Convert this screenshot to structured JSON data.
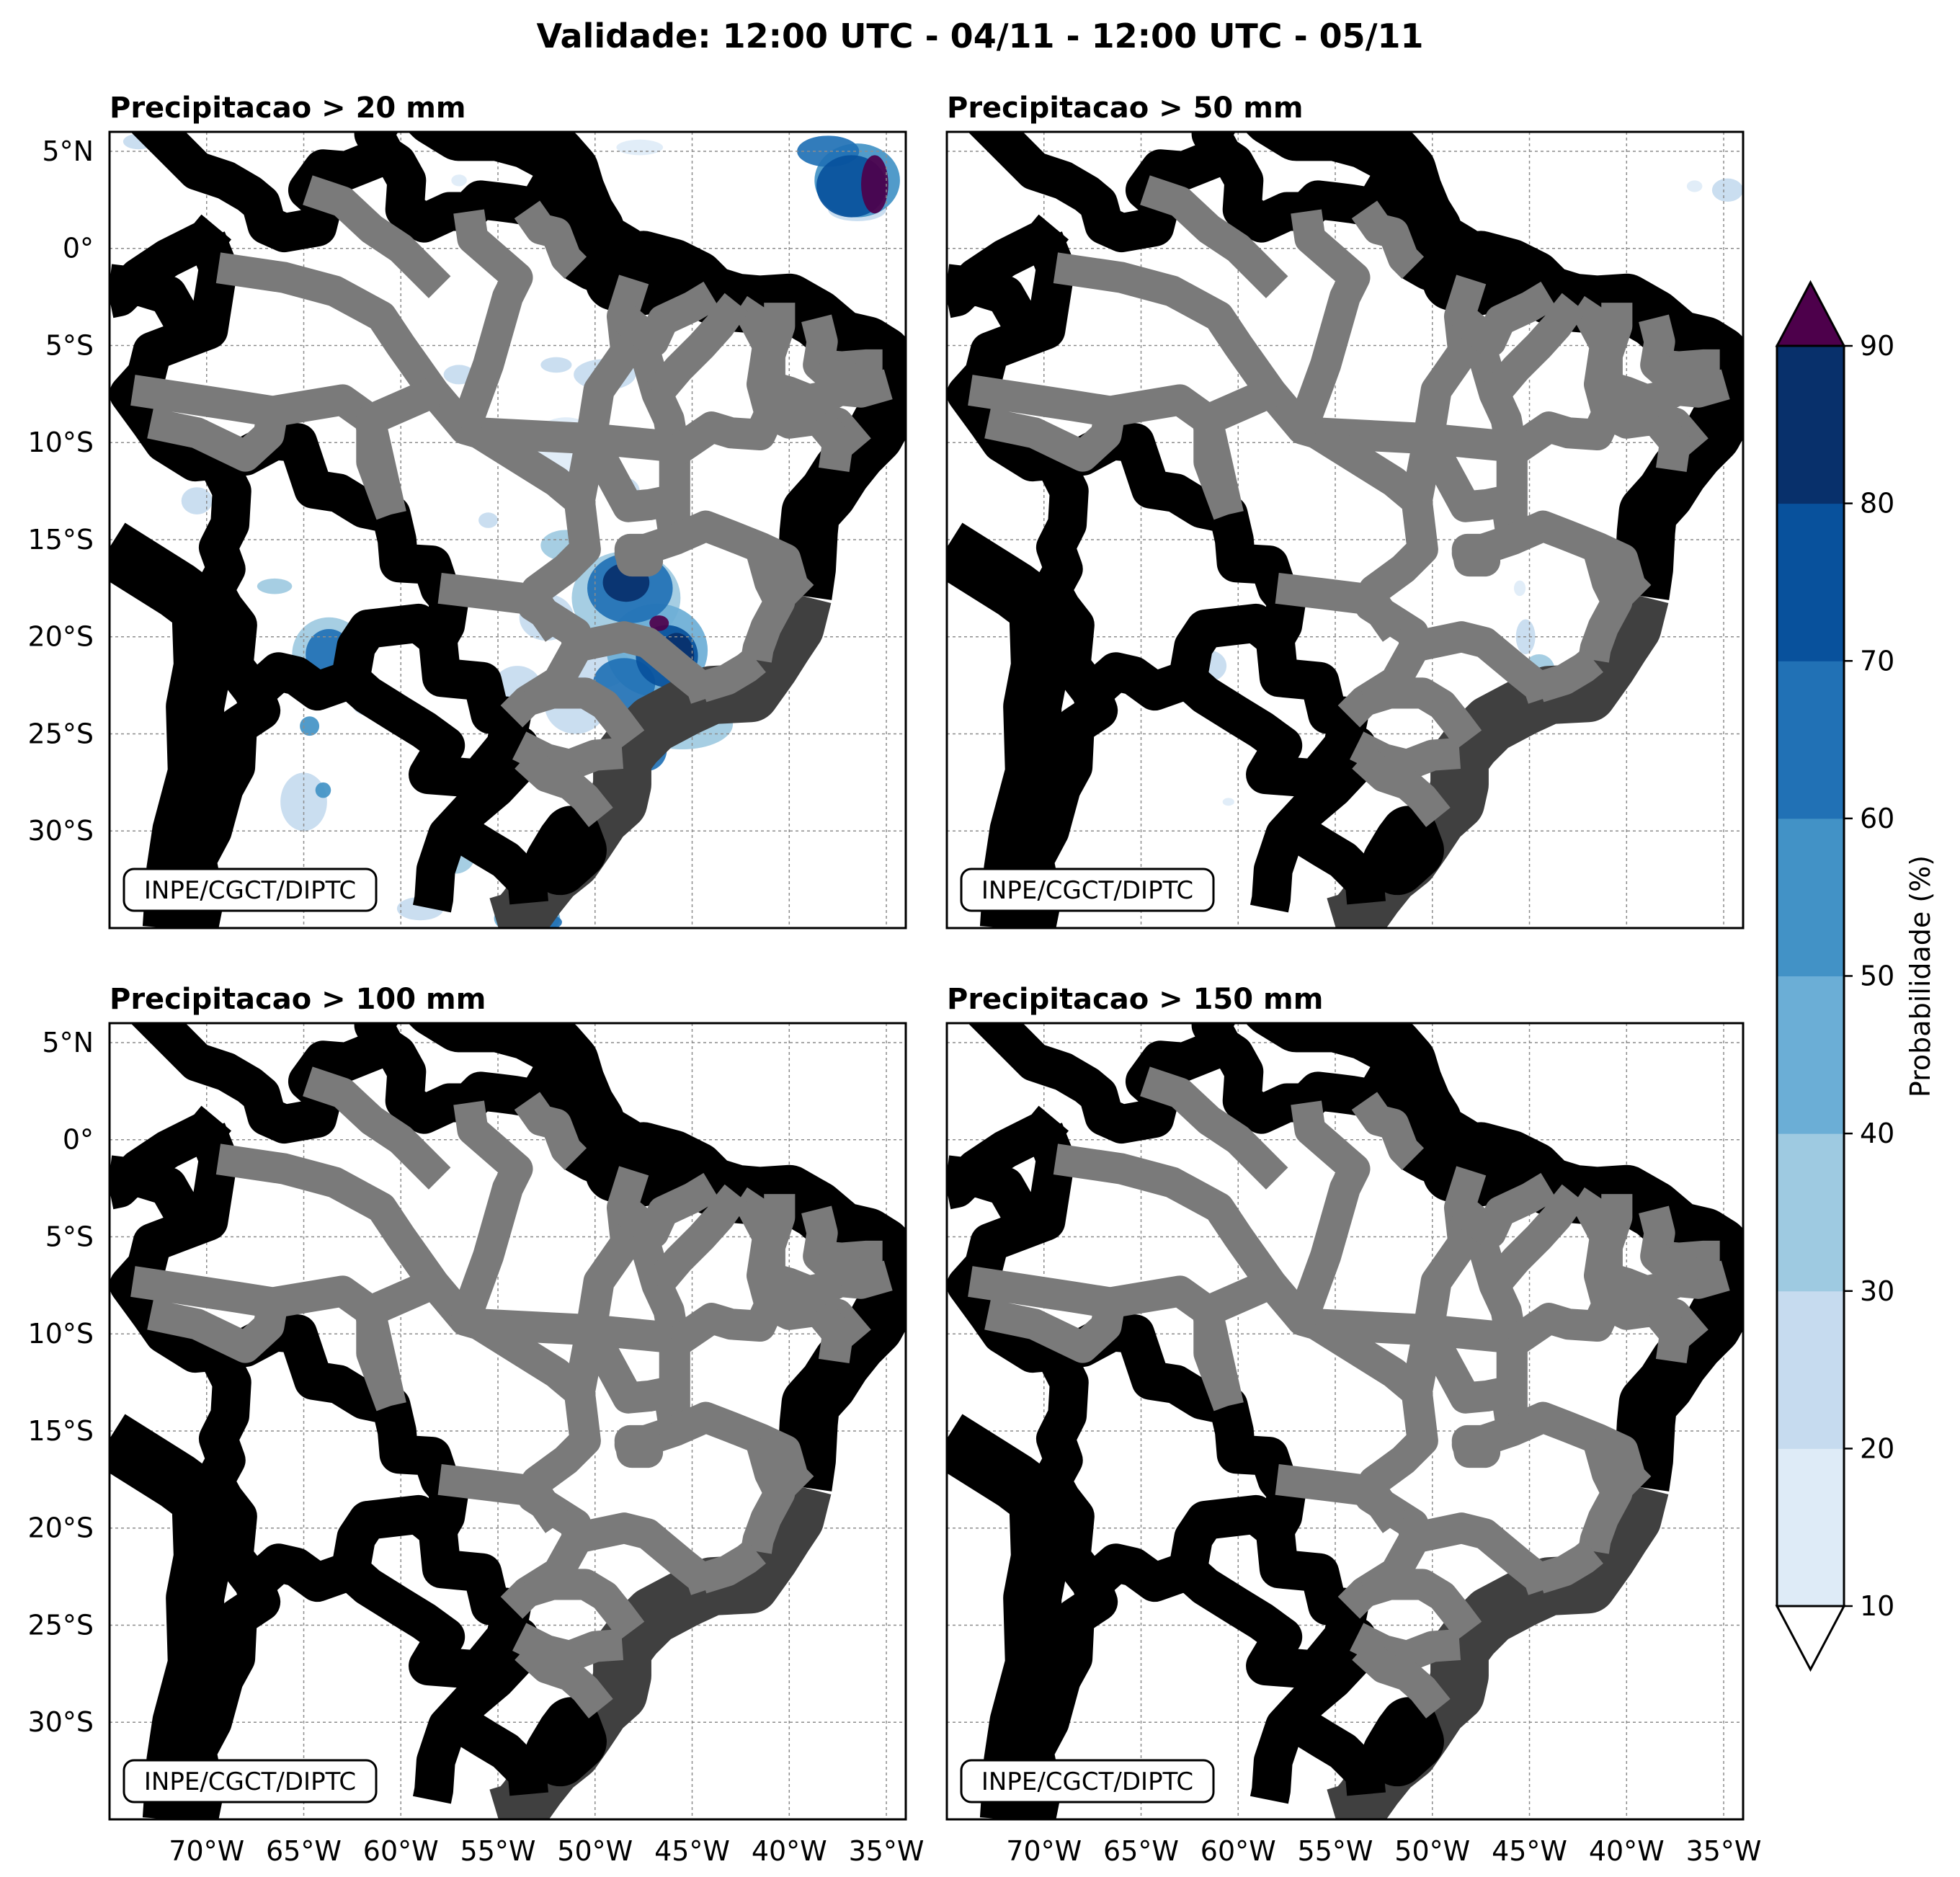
{
  "title": "Validade: 12:00 UTC - 04/11 - 12:00 UTC - 05/11",
  "panels": [
    {
      "id": "p20",
      "title": "Precipitacao > 20 mm",
      "credit": "INPE/CGCT/DIPTC"
    },
    {
      "id": "p50",
      "title": "Precipitacao > 50 mm",
      "credit": "INPE/CGCT/DIPTC"
    },
    {
      "id": "p100",
      "title": "Precipitacao > 100 mm",
      "credit": "INPE/CGCT/DIPTC"
    },
    {
      "id": "p150",
      "title": "Precipitacao > 150 mm",
      "credit": "INPE/CGCT/DIPTC"
    }
  ],
  "axes": {
    "lon_ticks": [
      "70°W",
      "65°W",
      "60°W",
      "55°W",
      "50°W",
      "45°W",
      "40°W",
      "35°W"
    ],
    "lat_ticks": [
      "5°N",
      "0°",
      "5°S",
      "10°S",
      "15°S",
      "20°S",
      "25°S",
      "30°S"
    ]
  },
  "colorbar": {
    "label": "Probabilidade (%)",
    "ticks": [
      "10",
      "20",
      "30",
      "40",
      "50",
      "60",
      "70",
      "80",
      "90"
    ],
    "colors": [
      "#deebf7",
      "#c6dbef",
      "#9ecae1",
      "#6baed6",
      "#4292c6",
      "#2171b5",
      "#08519c",
      "#08306b"
    ],
    "over_color": "#4d004b",
    "under_color": "#ffffff"
  },
  "map_data": {
    "extent": {
      "lon_min": -75,
      "lon_max": -34,
      "lat_min": -35,
      "lat_max": 6
    },
    "lon_values": [
      -70,
      -65,
      -60,
      -55,
      -50,
      -45,
      -40,
      -35
    ],
    "lat_values": [
      5,
      0,
      -5,
      -10,
      -15,
      -20,
      -25,
      -30
    ],
    "p20": [
      {
        "lon": -36.5,
        "lat": 3.5,
        "rx": 2.2,
        "ry": 1.9,
        "level": 4
      },
      {
        "lon": -36.8,
        "lat": 3.2,
        "rx": 1.8,
        "ry": 1.6,
        "level": 6
      },
      {
        "lon": -35.6,
        "lat": 3.3,
        "rx": 0.7,
        "ry": 1.5,
        "level": 8
      },
      {
        "lon": -38.0,
        "lat": 5.0,
        "rx": 1.6,
        "ry": 0.8,
        "level": 5
      },
      {
        "lon": -36.5,
        "lat": 2.0,
        "rx": 1.5,
        "ry": 0.6,
        "level": 1
      },
      {
        "lon": -47.7,
        "lat": 5.2,
        "rx": 1.2,
        "ry": 0.4,
        "level": 0
      },
      {
        "lon": -73.5,
        "lat": 5.5,
        "rx": 0.8,
        "ry": 0.4,
        "level": 1
      },
      {
        "lon": -57.0,
        "lat": 3.5,
        "rx": 0.4,
        "ry": 0.3,
        "level": 0
      },
      {
        "lon": -48.4,
        "lat": -18.0,
        "rx": 2.8,
        "ry": 2.4,
        "level": 2
      },
      {
        "lon": -48.2,
        "lat": -17.5,
        "rx": 2.2,
        "ry": 1.8,
        "level": 5
      },
      {
        "lon": -48.4,
        "lat": -17.2,
        "rx": 1.2,
        "ry": 1.0,
        "level": 7
      },
      {
        "lon": -46.8,
        "lat": -20.7,
        "rx": 2.6,
        "ry": 2.4,
        "level": 3
      },
      {
        "lon": -46.3,
        "lat": -21.0,
        "rx": 1.6,
        "ry": 1.6,
        "level": 6
      },
      {
        "lon": -45.8,
        "lat": -21.0,
        "rx": 0.9,
        "ry": 1.2,
        "level": 7
      },
      {
        "lon": -46.7,
        "lat": -19.3,
        "rx": 0.5,
        "ry": 0.4,
        "level": 8
      },
      {
        "lon": -45.5,
        "lat": -21.8,
        "rx": 0.4,
        "ry": 0.3,
        "level": 8
      },
      {
        "lon": -50.0,
        "lat": -21.5,
        "rx": 1.8,
        "ry": 1.2,
        "level": 1
      },
      {
        "lon": -48.5,
        "lat": -22.4,
        "rx": 1.6,
        "ry": 1.3,
        "level": 5
      },
      {
        "lon": -45.5,
        "lat": -24.5,
        "rx": 2.6,
        "ry": 1.3,
        "level": 2
      },
      {
        "lon": -47.3,
        "lat": -25.8,
        "rx": 1.0,
        "ry": 1.1,
        "level": 5
      },
      {
        "lon": -48.5,
        "lat": -27.5,
        "rx": 0.7,
        "ry": 1.2,
        "level": 3
      },
      {
        "lon": -51.5,
        "lat": -15.3,
        "rx": 1.3,
        "ry": 0.8,
        "level": 2
      },
      {
        "lon": -52.5,
        "lat": -19.0,
        "rx": 1.4,
        "ry": 1.2,
        "level": 1
      },
      {
        "lon": -51.0,
        "lat": -23.5,
        "rx": 1.6,
        "ry": 1.5,
        "level": 1
      },
      {
        "lon": -54.0,
        "lat": -22.5,
        "rx": 1.2,
        "ry": 1.0,
        "level": 1
      },
      {
        "lon": -63.7,
        "lat": -20.9,
        "rx": 1.9,
        "ry": 1.9,
        "level": 2
      },
      {
        "lon": -63.7,
        "lat": -20.9,
        "rx": 1.2,
        "ry": 1.3,
        "level": 5
      },
      {
        "lon": -63.2,
        "lat": -22.0,
        "rx": 0.5,
        "ry": 0.5,
        "level": 6
      },
      {
        "lon": -61.5,
        "lat": -23.5,
        "rx": 1.0,
        "ry": 0.6,
        "level": 1
      },
      {
        "lon": -64.7,
        "lat": -24.6,
        "rx": 0.5,
        "ry": 0.5,
        "level": 4
      },
      {
        "lon": -66.5,
        "lat": -17.4,
        "rx": 0.9,
        "ry": 0.4,
        "level": 2
      },
      {
        "lon": -65.0,
        "lat": -28.5,
        "rx": 1.2,
        "ry": 1.5,
        "level": 1
      },
      {
        "lon": -64.0,
        "lat": -27.9,
        "rx": 0.4,
        "ry": 0.4,
        "level": 4
      },
      {
        "lon": -70.5,
        "lat": -13.0,
        "rx": 0.8,
        "ry": 0.7,
        "level": 1
      },
      {
        "lon": -51.5,
        "lat": -10.5,
        "rx": 2.0,
        "ry": 1.8,
        "level": 0
      },
      {
        "lon": -49.5,
        "lat": -6.5,
        "rx": 1.6,
        "ry": 0.8,
        "level": 1
      },
      {
        "lon": -48.5,
        "lat": -12.5,
        "rx": 0.8,
        "ry": 0.7,
        "level": 1
      },
      {
        "lon": -57.0,
        "lat": -6.5,
        "rx": 0.8,
        "ry": 0.5,
        "level": 1
      },
      {
        "lon": -52.0,
        "lat": -6.0,
        "rx": 0.8,
        "ry": 0.4,
        "level": 1
      },
      {
        "lon": -55.5,
        "lat": -14.0,
        "rx": 0.5,
        "ry": 0.4,
        "level": 1
      },
      {
        "lon": -57.2,
        "lat": -31.3,
        "rx": 1.0,
        "ry": 0.9,
        "level": 2
      },
      {
        "lon": -53.5,
        "lat": -34.5,
        "rx": 1.7,
        "ry": 0.9,
        "level": 3
      },
      {
        "lon": -52.5,
        "lat": -34.7,
        "rx": 0.8,
        "ry": 0.4,
        "level": 5
      },
      {
        "lon": -59.0,
        "lat": -34.0,
        "rx": 1.2,
        "ry": 0.6,
        "level": 1
      }
    ],
    "p50": [
      {
        "lon": -34.8,
        "lat": 3.0,
        "rx": 0.8,
        "ry": 0.6,
        "level": 1
      },
      {
        "lon": -36.5,
        "lat": 3.2,
        "rx": 0.4,
        "ry": 0.3,
        "level": 0
      },
      {
        "lon": -44.5,
        "lat": -21.7,
        "rx": 0.8,
        "ry": 0.8,
        "level": 2
      },
      {
        "lon": -45.2,
        "lat": -20.0,
        "rx": 0.5,
        "ry": 0.9,
        "level": 1
      },
      {
        "lon": -45.5,
        "lat": -17.5,
        "rx": 0.3,
        "ry": 0.4,
        "level": 0
      },
      {
        "lon": -46.5,
        "lat": -24.0,
        "rx": 0.4,
        "ry": 0.3,
        "level": 0
      },
      {
        "lon": -61.5,
        "lat": -21.5,
        "rx": 0.9,
        "ry": 0.8,
        "level": 1
      },
      {
        "lon": -62.5,
        "lat": -23.0,
        "rx": 0.5,
        "ry": 0.5,
        "level": 0
      },
      {
        "lon": -60.5,
        "lat": -28.5,
        "rx": 0.3,
        "ry": 0.2,
        "level": 0
      }
    ],
    "p100": [],
    "p150": []
  }
}
